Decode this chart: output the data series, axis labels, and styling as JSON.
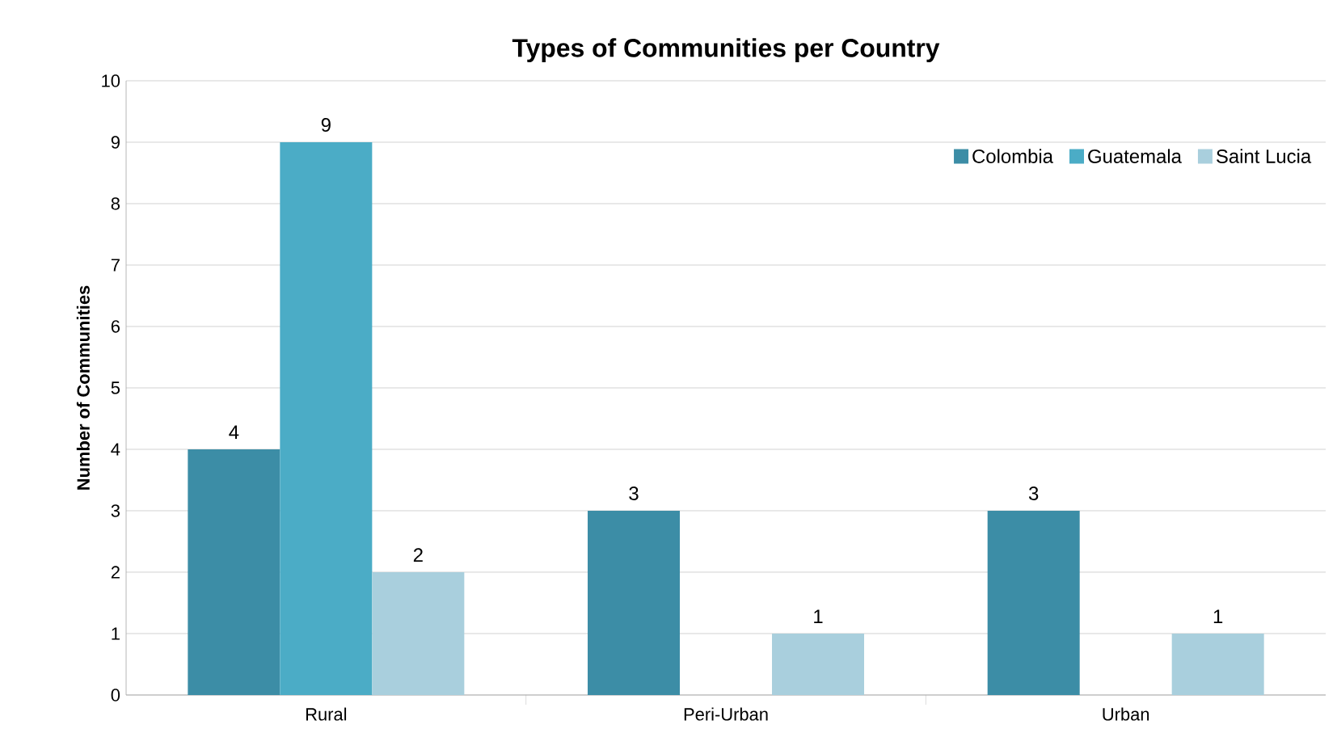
{
  "chart_data": {
    "type": "bar",
    "title": "Types of Communities per Country",
    "ylabel": "Number of Communities",
    "categories": [
      "Rural",
      "Peri-Urban",
      "Urban"
    ],
    "series": [
      {
        "name": "Colombia",
        "color": "#3c8da6",
        "values": [
          4,
          3,
          3
        ]
      },
      {
        "name": "Guatemala",
        "color": "#4bacc6",
        "values": [
          9,
          null,
          null
        ]
      },
      {
        "name": "Saint Lucia",
        "color": "#a9cfdd",
        "values": [
          2,
          1,
          1
        ]
      }
    ],
    "ylim": [
      0,
      10
    ],
    "yticks": [
      0,
      1,
      2,
      3,
      4,
      5,
      6,
      7,
      8,
      9,
      10
    ],
    "grid": "y",
    "legend": "top right",
    "data_labels": true
  }
}
